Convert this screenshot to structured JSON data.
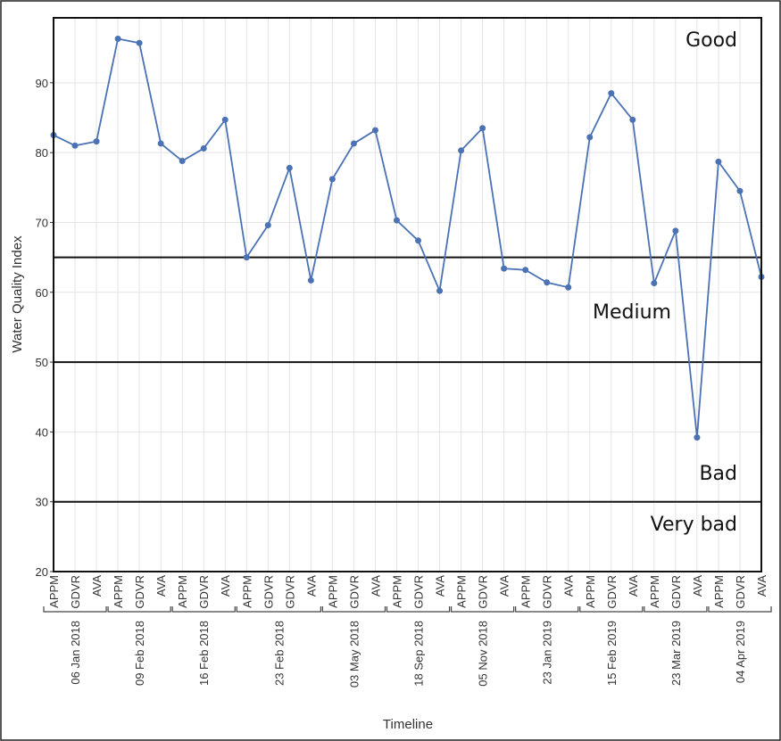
{
  "chart_data": {
    "type": "line",
    "y_label": "Water Quality Index",
    "x_label": "Timeline",
    "groups": [
      {
        "label": "06 Jan 2018",
        "categories": [
          "APPM",
          "GDVR",
          "AVA"
        ]
      },
      {
        "label": "09 Feb 2018",
        "categories": [
          "APPM",
          "GDVR",
          "AVA"
        ]
      },
      {
        "label": "16 Feb 2018",
        "categories": [
          "APPM",
          "GDVR",
          "AVA"
        ]
      },
      {
        "label": "23 Feb 2018",
        "categories": [
          "APPM",
          "GDVR",
          "GDVR",
          "AVA"
        ]
      },
      {
        "label": "03 May 2018",
        "categories": [
          "APPM",
          "GDVR",
          "AVA"
        ]
      },
      {
        "label": "18 Sep 2018",
        "categories": [
          "APPM",
          "GDVR",
          "AVA"
        ]
      },
      {
        "label": "05 Nov 2018",
        "categories": [
          "APPM",
          "GDVR",
          "AVA"
        ]
      },
      {
        "label": "23 Jan 2019",
        "categories": [
          "APPM",
          "GDVR",
          "AVA"
        ]
      },
      {
        "label": "15 Feb 2019",
        "categories": [
          "APPM",
          "GDVR",
          "AVA"
        ]
      },
      {
        "label": "23 Mar 2019",
        "categories": [
          "APPM",
          "GDVR",
          "AVA"
        ]
      },
      {
        "label": "04 Apr 2019",
        "categories": [
          "APPM",
          "GDVR",
          "AVA"
        ]
      }
    ],
    "values": [
      82.5,
      81,
      81.6,
      96.3,
      95.7,
      81.3,
      78.8,
      80.6,
      84.7,
      65,
      69.6,
      77.8,
      61.7,
      76.2,
      81.3,
      83.2,
      70.3,
      67.4,
      60.2,
      80.3,
      83.5,
      63.4,
      63.2,
      61.4,
      60.7,
      82.2,
      88.5,
      84.7,
      61.3,
      68.8,
      39.2,
      78.7,
      74.5,
      62.2
    ],
    "color": "#4a72b5",
    "ylim": [
      20,
      99.3
    ],
    "yticks": [
      20,
      30,
      40,
      50,
      60,
      70,
      80,
      90
    ],
    "thresholds": [
      65,
      50,
      30
    ],
    "zone_labels": [
      "Good",
      "Medium",
      "Bad",
      "Very bad"
    ],
    "grid": true
  }
}
